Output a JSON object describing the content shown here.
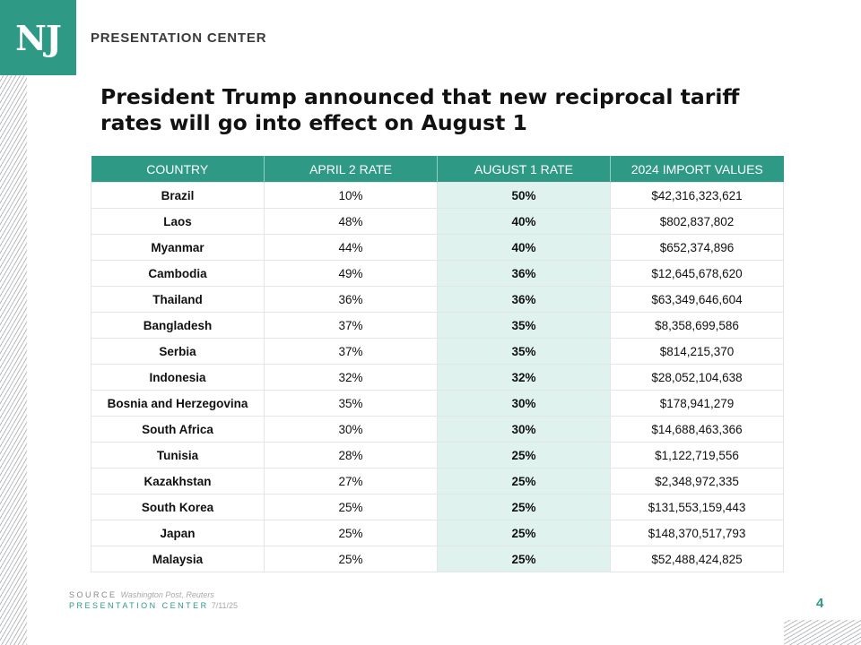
{
  "brand": {
    "logo_text": "NJ",
    "section_label": "PRESENTATION CENTER",
    "accent_color": "#2e9a86",
    "highlight_color": "#dff2ee"
  },
  "title": "President Trump announced that new reciprocal tariff rates will go into effect on August 1",
  "table": {
    "headers": [
      "COUNTRY",
      "APRIL 2 RATE",
      "AUGUST 1 RATE",
      "2024 IMPORT VALUES"
    ],
    "rows": [
      [
        "Brazil",
        "10%",
        "50%",
        "$42,316,323,621"
      ],
      [
        "Laos",
        "48%",
        "40%",
        "$802,837,802"
      ],
      [
        "Myanmar",
        "44%",
        "40%",
        "$652,374,896"
      ],
      [
        "Cambodia",
        "49%",
        "36%",
        "$12,645,678,620"
      ],
      [
        "Thailand",
        "36%",
        "36%",
        "$63,349,646,604"
      ],
      [
        "Bangladesh",
        "37%",
        "35%",
        "$8,358,699,586"
      ],
      [
        "Serbia",
        "37%",
        "35%",
        "$814,215,370"
      ],
      [
        "Indonesia",
        "32%",
        "32%",
        "$28,052,104,638"
      ],
      [
        "Bosnia and Herzegovina",
        "35%",
        "30%",
        "$178,941,279"
      ],
      [
        "South Africa",
        "30%",
        "30%",
        "$14,688,463,366"
      ],
      [
        "Tunisia",
        "28%",
        "25%",
        "$1,122,719,556"
      ],
      [
        "Kazakhstan",
        "27%",
        "25%",
        "$2,348,972,335"
      ],
      [
        "South Korea",
        "25%",
        "25%",
        "$131,553,159,443"
      ],
      [
        "Japan",
        "25%",
        "25%",
        "$148,370,517,793"
      ],
      [
        "Malaysia",
        "25%",
        "25%",
        "$52,488,424,825"
      ]
    ]
  },
  "footer": {
    "source_label": "SOURCE",
    "source_value": "Washington Post, Reuters",
    "center_label": "PRESENTATION CENTER",
    "date": "7/11/25",
    "page_number": "4"
  }
}
